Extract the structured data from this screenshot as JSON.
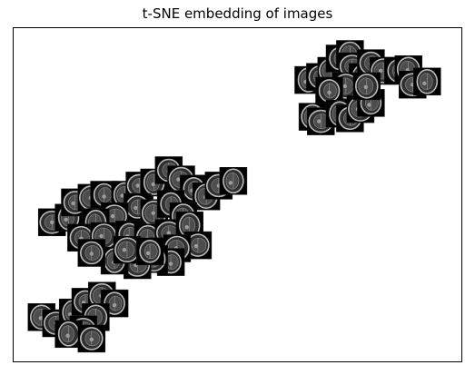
{
  "chart_data": {
    "type": "scatter",
    "title": "t-SNE embedding of images",
    "xlabel": "",
    "ylabel": "",
    "xlim": [
      0,
      1
    ],
    "ylim": [
      0,
      1
    ],
    "grid": false,
    "axes_ticks": false,
    "marker": "image-thumbnail",
    "points": [
      {
        "cluster": 1,
        "x": 0.67,
        "y": 0.875
      },
      {
        "cluster": 1,
        "x": 0.698,
        "y": 0.885
      },
      {
        "cluster": 1,
        "x": 0.725,
        "y": 0.905
      },
      {
        "cluster": 1,
        "x": 0.745,
        "y": 0.945
      },
      {
        "cluster": 1,
        "x": 0.77,
        "y": 0.96
      },
      {
        "cluster": 1,
        "x": 0.775,
        "y": 0.92
      },
      {
        "cluster": 1,
        "x": 0.8,
        "y": 0.885
      },
      {
        "cluster": 1,
        "x": 0.82,
        "y": 0.93
      },
      {
        "cluster": 1,
        "x": 0.85,
        "y": 0.905
      },
      {
        "cluster": 1,
        "x": 0.885,
        "y": 0.905
      },
      {
        "cluster": 1,
        "x": 0.91,
        "y": 0.91
      },
      {
        "cluster": 1,
        "x": 0.92,
        "y": 0.86
      },
      {
        "cluster": 1,
        "x": 0.955,
        "y": 0.87
      },
      {
        "cluster": 1,
        "x": 0.79,
        "y": 0.83
      },
      {
        "cluster": 1,
        "x": 0.76,
        "y": 0.855
      },
      {
        "cluster": 1,
        "x": 0.72,
        "y": 0.84
      },
      {
        "cluster": 1,
        "x": 0.68,
        "y": 0.755
      },
      {
        "cluster": 1,
        "x": 0.7,
        "y": 0.74
      },
      {
        "cluster": 1,
        "x": 0.745,
        "y": 0.765
      },
      {
        "cluster": 1,
        "x": 0.77,
        "y": 0.75
      },
      {
        "cluster": 1,
        "x": 0.795,
        "y": 0.78
      },
      {
        "cluster": 1,
        "x": 0.82,
        "y": 0.8
      },
      {
        "cluster": 1,
        "x": 0.81,
        "y": 0.855
      },
      {
        "cluster": 2,
        "x": 0.055,
        "y": 0.41
      },
      {
        "cluster": 2,
        "x": 0.095,
        "y": 0.425
      },
      {
        "cluster": 2,
        "x": 0.11,
        "y": 0.475
      },
      {
        "cluster": 2,
        "x": 0.15,
        "y": 0.49
      },
      {
        "cluster": 2,
        "x": 0.18,
        "y": 0.5
      },
      {
        "cluster": 2,
        "x": 0.23,
        "y": 0.5
      },
      {
        "cluster": 2,
        "x": 0.265,
        "y": 0.53
      },
      {
        "cluster": 2,
        "x": 0.3,
        "y": 0.54
      },
      {
        "cluster": 2,
        "x": 0.335,
        "y": 0.58
      },
      {
        "cluster": 2,
        "x": 0.365,
        "y": 0.55
      },
      {
        "cluster": 2,
        "x": 0.395,
        "y": 0.52
      },
      {
        "cluster": 2,
        "x": 0.425,
        "y": 0.495
      },
      {
        "cluster": 2,
        "x": 0.455,
        "y": 0.53
      },
      {
        "cluster": 2,
        "x": 0.49,
        "y": 0.545
      },
      {
        "cluster": 2,
        "x": 0.26,
        "y": 0.46
      },
      {
        "cluster": 2,
        "x": 0.3,
        "y": 0.44
      },
      {
        "cluster": 2,
        "x": 0.34,
        "y": 0.47
      },
      {
        "cluster": 2,
        "x": 0.37,
        "y": 0.43
      },
      {
        "cluster": 2,
        "x": 0.205,
        "y": 0.43
      },
      {
        "cluster": 2,
        "x": 0.16,
        "y": 0.41
      },
      {
        "cluster": 2,
        "x": 0.125,
        "y": 0.36
      },
      {
        "cluster": 2,
        "x": 0.18,
        "y": 0.365
      },
      {
        "cluster": 2,
        "x": 0.24,
        "y": 0.37
      },
      {
        "cluster": 2,
        "x": 0.285,
        "y": 0.36
      },
      {
        "cluster": 2,
        "x": 0.335,
        "y": 0.375
      },
      {
        "cluster": 2,
        "x": 0.385,
        "y": 0.4
      },
      {
        "cluster": 2,
        "x": 0.405,
        "y": 0.335
      },
      {
        "cluster": 2,
        "x": 0.355,
        "y": 0.325
      },
      {
        "cluster": 2,
        "x": 0.34,
        "y": 0.28
      },
      {
        "cluster": 2,
        "x": 0.3,
        "y": 0.29
      },
      {
        "cluster": 2,
        "x": 0.26,
        "y": 0.27
      },
      {
        "cluster": 2,
        "x": 0.205,
        "y": 0.285
      },
      {
        "cluster": 2,
        "x": 0.15,
        "y": 0.31
      },
      {
        "cluster": 2,
        "x": 0.235,
        "y": 0.32
      },
      {
        "cluster": 2,
        "x": 0.29,
        "y": 0.315
      },
      {
        "cluster": 3,
        "x": 0.03,
        "y": 0.1
      },
      {
        "cluster": 3,
        "x": 0.065,
        "y": 0.08
      },
      {
        "cluster": 3,
        "x": 0.105,
        "y": 0.115
      },
      {
        "cluster": 3,
        "x": 0.135,
        "y": 0.15
      },
      {
        "cluster": 3,
        "x": 0.175,
        "y": 0.17
      },
      {
        "cluster": 3,
        "x": 0.205,
        "y": 0.145
      },
      {
        "cluster": 3,
        "x": 0.16,
        "y": 0.1
      },
      {
        "cluster": 3,
        "x": 0.13,
        "y": 0.06
      },
      {
        "cluster": 3,
        "x": 0.095,
        "y": 0.045
      },
      {
        "cluster": 3,
        "x": 0.15,
        "y": 0.03
      }
    ]
  }
}
